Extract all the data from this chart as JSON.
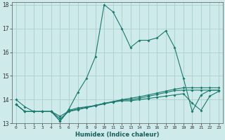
{
  "title": "",
  "xlabel": "Humidex (Indice chaleur)",
  "ylabel": "",
  "background_color": "#ceeaea",
  "grid_color": "#aacfcf",
  "line_color": "#1a7a6e",
  "x_values": [
    0,
    1,
    2,
    3,
    4,
    5,
    6,
    7,
    8,
    9,
    10,
    11,
    12,
    13,
    14,
    15,
    16,
    17,
    18,
    19,
    20,
    21,
    22,
    23
  ],
  "series1": [
    14.0,
    13.7,
    13.5,
    13.5,
    13.5,
    13.1,
    13.6,
    14.3,
    14.9,
    15.8,
    18.0,
    17.7,
    17.0,
    16.2,
    16.5,
    16.5,
    16.6,
    16.9,
    16.2,
    14.9,
    13.5,
    14.2,
    14.4,
    14.4
  ],
  "series2": [
    13.8,
    13.5,
    13.5,
    13.5,
    13.5,
    13.1,
    13.55,
    13.65,
    13.7,
    13.75,
    13.85,
    13.9,
    13.95,
    13.95,
    14.0,
    14.05,
    14.1,
    14.15,
    14.2,
    14.25,
    13.85,
    13.55,
    14.15,
    14.35
  ],
  "series3": [
    13.8,
    13.5,
    13.5,
    13.5,
    13.5,
    13.2,
    13.5,
    13.58,
    13.66,
    13.74,
    13.82,
    13.9,
    13.98,
    14.0,
    14.06,
    14.14,
    14.22,
    14.3,
    14.38,
    14.4,
    14.4,
    14.4,
    14.4,
    14.4
  ],
  "series4": [
    13.8,
    13.5,
    13.5,
    13.5,
    13.5,
    13.3,
    13.52,
    13.6,
    13.68,
    13.76,
    13.84,
    13.92,
    14.0,
    14.06,
    14.12,
    14.2,
    14.28,
    14.36,
    14.44,
    14.5,
    14.5,
    14.5,
    14.5,
    14.5
  ],
  "ylim": [
    13.0,
    18.0
  ],
  "yticks": [
    13,
    14,
    15,
    16,
    17,
    18
  ],
  "xticks": [
    0,
    1,
    2,
    3,
    4,
    5,
    6,
    7,
    8,
    9,
    10,
    11,
    12,
    13,
    14,
    15,
    16,
    17,
    18,
    19,
    20,
    21,
    22,
    23
  ]
}
